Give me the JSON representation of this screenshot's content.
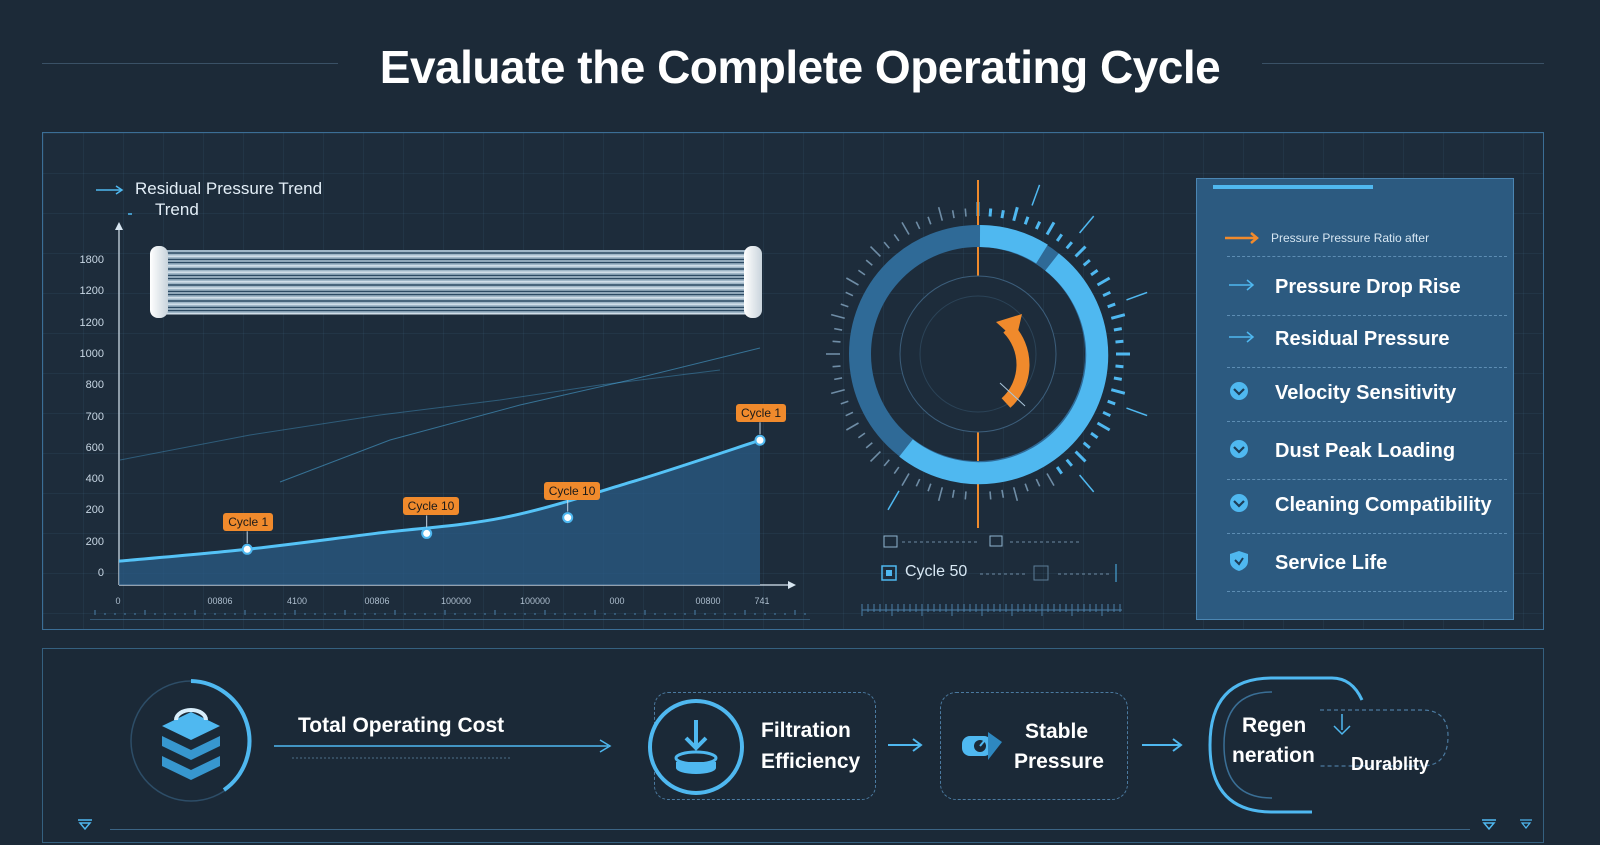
{
  "title": "Evaluate the Complete Operating Cycle",
  "chart": {
    "legend_primary": "Residual Pressure Trend",
    "legend_secondary": "Trend",
    "y_ticks": [
      "1800",
      "1200",
      "1200",
      "1000",
      "800",
      "700",
      "600",
      "400",
      "200",
      "200",
      "0"
    ],
    "x_ticks": [
      "0",
      "00806",
      "4100",
      "00806",
      "100000",
      "100000",
      "000",
      "00800",
      "741"
    ],
    "callouts": [
      "Cycle 1",
      "Cycle 10",
      "Cycle 10",
      "Cycle 1"
    ]
  },
  "chart_data": {
    "type": "line",
    "title": "Residual Pressure Trend",
    "ylim": [
      0,
      1800
    ],
    "series": [
      {
        "name": "Residual Pressure Trend",
        "x": [
          0,
          1,
          2,
          3,
          4,
          5
        ],
        "values": [
          120,
          180,
          260,
          340,
          520,
          730
        ]
      }
    ],
    "annotations": [
      {
        "label": "Cycle 1",
        "x": 1,
        "y": 180
      },
      {
        "label": "Cycle 10",
        "x": 2.4,
        "y": 260
      },
      {
        "label": "Cycle 10",
        "x": 3.5,
        "y": 340
      },
      {
        "label": "Cycle 1",
        "x": 5,
        "y": 730
      }
    ]
  },
  "gauge": {
    "label": "Cycle 50"
  },
  "right_panel": {
    "header": "Pressure Pressure Ratio after",
    "items": [
      {
        "label": "Pressure Drop Rise",
        "icon": "arrow-right-icon"
      },
      {
        "label": "Residual Pressure",
        "icon": "arrow-right-icon"
      },
      {
        "label": "Velocity Sensitivity",
        "icon": "chevron-circle-icon"
      },
      {
        "label": "Dust Peak Loading",
        "icon": "chevron-circle-icon"
      },
      {
        "label": "Cleaning Compatibility",
        "icon": "chevron-circle-icon"
      },
      {
        "label": "Service Life",
        "icon": "shield-icon"
      }
    ]
  },
  "flow": {
    "total_cost": "Total Operating Cost",
    "filtration_line1": "Filtration",
    "filtration_line2": "Efficiency",
    "stable_line1": "Stable",
    "stable_line2": "Pressure",
    "regen_line1": "Regen",
    "regen_line2": "neration",
    "durability": "Durablity"
  },
  "colors": {
    "background": "#1c2a38",
    "accent_blue": "#4fb8f0",
    "accent_orange": "#f08a2c",
    "panel_blue": "#2c5a80"
  }
}
